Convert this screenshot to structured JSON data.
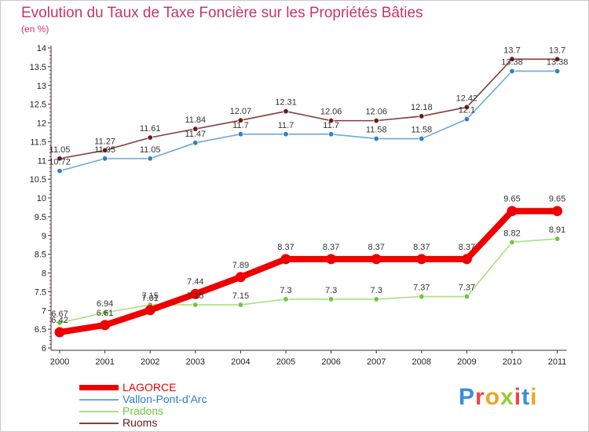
{
  "title": "Evolution du Taux de Taxe Foncière sur les Propriétés Bâties",
  "subtitle": "(en %)",
  "logo": {
    "letters": [
      "P",
      "r",
      "o",
      "x",
      "i",
      "t",
      "i"
    ],
    "colors": [
      "#3b8ed8",
      "#e8474a",
      "#f0a326",
      "#9acd32",
      "#e8474a",
      "#3b8ed8",
      "#f0a326"
    ]
  },
  "chart_data": {
    "type": "line",
    "title": "Evolution du Taux de Taxe Foncière sur les Propriétés Bâties",
    "ylabel": "(en %)",
    "xlabel": "",
    "categories": [
      "2000",
      "2001",
      "2002",
      "2003",
      "2004",
      "2005",
      "2006",
      "2007",
      "2008",
      "2009",
      "2010",
      "2011"
    ],
    "ylim": [
      6,
      14
    ],
    "yticks": [
      6,
      6.5,
      7,
      7.5,
      8,
      8.5,
      9,
      9.5,
      10,
      10.5,
      11,
      11.5,
      12,
      12.5,
      13,
      13.5,
      14
    ],
    "ytick_labels": [
      "6",
      "6.5",
      "7",
      "7.5",
      "8",
      "8.5",
      "9",
      "9.5",
      "10",
      "10.5",
      "11",
      "11.5",
      "12",
      "12.5",
      "13",
      "13.5",
      "14"
    ],
    "grid": false,
    "series": [
      {
        "name": "LAGORCE",
        "color": "#ee0000",
        "point_color": "#ee0000",
        "values": [
          6.42,
          6.61,
          7.01,
          7.44,
          7.89,
          8.37,
          8.37,
          8.37,
          8.37,
          8.37,
          9.65,
          9.65
        ],
        "labels": [
          "6.42",
          "6.61",
          "7.01",
          "7.44",
          "7.89",
          "8.37",
          "8.37",
          "8.37",
          "8.37",
          "8.37",
          "9.65",
          "9.65"
        ]
      },
      {
        "name": "Vallon-Pont-d'Arc",
        "color": "#6fa7d8",
        "point_color": "#2d7fcc",
        "values": [
          10.72,
          11.05,
          11.05,
          11.47,
          11.7,
          11.7,
          11.7,
          11.58,
          11.58,
          12.1,
          13.38,
          13.38
        ],
        "labels": [
          "10.72",
          "11.05",
          "11.05",
          "11.47",
          "11.7",
          "11.7",
          "11.7",
          "11.58",
          "11.58",
          "12.1",
          "13.38",
          "13.38"
        ]
      },
      {
        "name": "Pradons",
        "color": "#a8e080",
        "point_color": "#6ec63c",
        "values": [
          6.67,
          6.94,
          7.15,
          7.15,
          7.15,
          7.3,
          7.3,
          7.3,
          7.37,
          7.37,
          8.82,
          8.91
        ],
        "labels": [
          "6.67",
          "6.94",
          "7.15",
          "7.15",
          "7.15",
          "7.3",
          "7.3",
          "7.3",
          "7.37",
          "7.37",
          "8.82",
          "8.91"
        ]
      },
      {
        "name": "Ruoms",
        "color": "#8a3a3a",
        "point_color": "#6a1a1a",
        "values": [
          11.05,
          11.27,
          11.61,
          11.84,
          12.07,
          12.31,
          12.06,
          12.06,
          12.18,
          12.42,
          13.7,
          13.7
        ],
        "labels": [
          "11.05",
          "11.27",
          "11.61",
          "11.84",
          "12.07",
          "12.31",
          "12.06",
          "12.06",
          "12.18",
          "12.42",
          "13.7",
          "13.7"
        ]
      }
    ],
    "legend": [
      "LAGORCE",
      "Vallon-Pont-d'Arc",
      "Pradons",
      "Ruoms"
    ],
    "legend_position": "bottom-left"
  }
}
